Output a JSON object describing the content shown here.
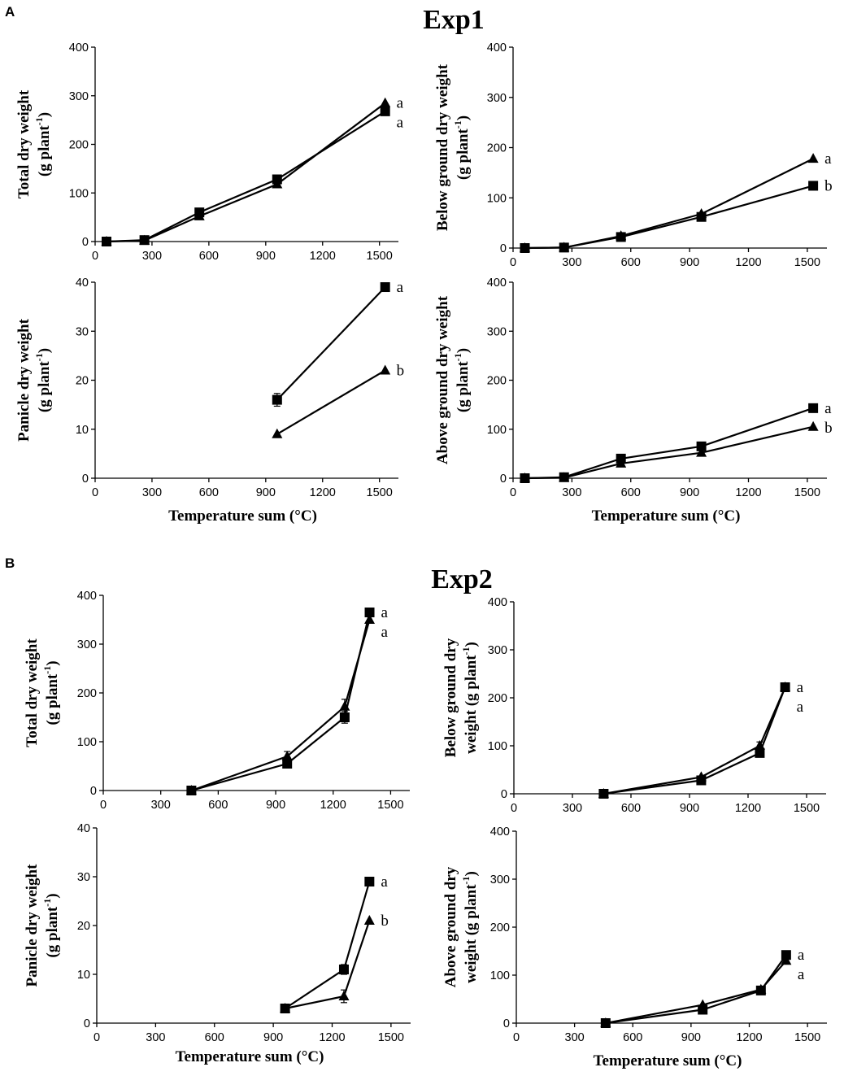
{
  "figure": {
    "panels": [
      {
        "id": "A",
        "label": "A",
        "title": "Exp1"
      },
      {
        "id": "B",
        "label": "B",
        "title": "Exp2"
      }
    ],
    "sup_minus_one": "-1"
  },
  "chart_data": [
    {
      "id": "A-total",
      "panel": "A",
      "type": "line",
      "ylabel_line1": "Total dry weight",
      "ylabel_line2": "(g plant",
      "xlabel": "",
      "xlim": [
        0,
        1600
      ],
      "xticks": [
        0,
        300,
        600,
        900,
        1200,
        1500
      ],
      "ylim": [
        0,
        400
      ],
      "yticks": [
        0,
        100,
        200,
        300,
        400
      ],
      "series": [
        {
          "name": "square",
          "marker": "square",
          "x": [
            60,
            260,
            550,
            960,
            1530
          ],
          "y": [
            0,
            3,
            60,
            128,
            268
          ],
          "err": [
            0,
            0,
            0,
            0,
            0
          ],
          "sig": "a"
        },
        {
          "name": "triangle",
          "marker": "triangle",
          "x": [
            60,
            260,
            550,
            960,
            1530
          ],
          "y": [
            0,
            2,
            52,
            118,
            285
          ],
          "err": [
            0,
            0,
            0,
            0,
            0
          ],
          "sig": "a"
        }
      ]
    },
    {
      "id": "A-below",
      "panel": "A",
      "type": "line",
      "ylabel_line1": "Below ground dry weight",
      "ylabel_line2": "(g plant",
      "xlabel": "",
      "xlim": [
        0,
        1600
      ],
      "xticks": [
        0,
        300,
        600,
        900,
        1200,
        1500
      ],
      "ylim": [
        0,
        400
      ],
      "yticks": [
        0,
        100,
        200,
        300,
        400
      ],
      "series": [
        {
          "name": "square",
          "marker": "square",
          "x": [
            60,
            260,
            550,
            960,
            1530
          ],
          "y": [
            0,
            1,
            22,
            62,
            124
          ],
          "err": [
            0,
            0,
            0,
            0,
            0
          ],
          "sig": "b"
        },
        {
          "name": "triangle",
          "marker": "triangle",
          "x": [
            60,
            260,
            550,
            960,
            1530
          ],
          "y": [
            0,
            1,
            24,
            68,
            178
          ],
          "err": [
            0,
            0,
            0,
            0,
            0
          ],
          "sig": "a"
        }
      ]
    },
    {
      "id": "A-panicle",
      "panel": "A",
      "type": "line",
      "ylabel_line1": "Panicle dry weight",
      "ylabel_line2": "(g plant",
      "xlabel": "Temperature sum (°C)",
      "xlim": [
        0,
        1600
      ],
      "xticks": [
        0,
        300,
        600,
        900,
        1200,
        1500
      ],
      "ylim": [
        0,
        40
      ],
      "yticks": [
        0,
        10,
        20,
        30,
        40
      ],
      "series": [
        {
          "name": "square",
          "marker": "square",
          "x": [
            960,
            1530
          ],
          "y": [
            16,
            39
          ],
          "err": [
            1.3,
            0
          ],
          "sig": "a"
        },
        {
          "name": "triangle",
          "marker": "triangle",
          "x": [
            960,
            1530
          ],
          "y": [
            9,
            22
          ],
          "err": [
            0,
            0
          ],
          "sig": "b"
        }
      ]
    },
    {
      "id": "A-above",
      "panel": "A",
      "type": "line",
      "ylabel_line1": "Above ground dry weight",
      "ylabel_line2": "(g plant",
      "xlabel": "Temperature sum (°C)",
      "xlim": [
        0,
        1600
      ],
      "xticks": [
        0,
        300,
        600,
        900,
        1200,
        1500
      ],
      "ylim": [
        0,
        400
      ],
      "yticks": [
        0,
        100,
        200,
        300,
        400
      ],
      "series": [
        {
          "name": "square",
          "marker": "square",
          "x": [
            60,
            260,
            550,
            960,
            1530
          ],
          "y": [
            0,
            2,
            40,
            65,
            143
          ],
          "err": [
            0,
            0,
            0,
            0,
            0
          ],
          "sig": "a"
        },
        {
          "name": "triangle",
          "marker": "triangle",
          "x": [
            60,
            260,
            550,
            960,
            1530
          ],
          "y": [
            0,
            1,
            30,
            52,
            105
          ],
          "err": [
            0,
            0,
            0,
            0,
            0
          ],
          "sig": "b"
        }
      ]
    },
    {
      "id": "B-total",
      "panel": "B",
      "type": "line",
      "ylabel_line1": "Total dry weight",
      "ylabel_line2": "(g plant",
      "xlabel": "",
      "xlim": [
        0,
        1600
      ],
      "xticks": [
        0,
        300,
        600,
        900,
        1200,
        1500
      ],
      "ylim": [
        0,
        400
      ],
      "yticks": [
        0,
        100,
        200,
        300,
        400
      ],
      "series": [
        {
          "name": "square",
          "marker": "square",
          "x": [
            460,
            960,
            1260,
            1390
          ],
          "y": [
            0,
            55,
            150,
            365
          ],
          "err": [
            0,
            0,
            12,
            0
          ],
          "sig": "a"
        },
        {
          "name": "triangle",
          "marker": "triangle",
          "x": [
            460,
            960,
            1260,
            1390
          ],
          "y": [
            0,
            70,
            172,
            350
          ],
          "err": [
            0,
            10,
            15,
            0
          ],
          "sig": "a"
        }
      ]
    },
    {
      "id": "B-below",
      "panel": "B",
      "type": "line",
      "ylabel_line1": "Below ground dry",
      "ylabel_line2": "weight (g plant",
      "xlabel": "",
      "xlim": [
        0,
        1600
      ],
      "xticks": [
        0,
        300,
        600,
        900,
        1200,
        1500
      ],
      "ylim": [
        0,
        400
      ],
      "yticks": [
        0,
        100,
        200,
        300,
        400
      ],
      "series": [
        {
          "name": "square",
          "marker": "square",
          "x": [
            460,
            960,
            1260,
            1390
          ],
          "y": [
            0,
            28,
            85,
            222
          ],
          "err": [
            0,
            0,
            0,
            0
          ],
          "sig": "a"
        },
        {
          "name": "triangle",
          "marker": "triangle",
          "x": [
            460,
            960,
            1260,
            1390
          ],
          "y": [
            0,
            35,
            100,
            222
          ],
          "err": [
            0,
            0,
            8,
            0
          ],
          "sig": "a"
        }
      ]
    },
    {
      "id": "B-panicle",
      "panel": "B",
      "type": "line",
      "ylabel_line1": "Panicle dry weight",
      "ylabel_line2": "(g plant",
      "xlabel": "Temperature sum (°C)",
      "xlim": [
        0,
        1600
      ],
      "xticks": [
        0,
        300,
        600,
        900,
        1200,
        1500
      ],
      "ylim": [
        0,
        40
      ],
      "yticks": [
        0,
        10,
        20,
        30,
        40
      ],
      "series": [
        {
          "name": "square",
          "marker": "square",
          "x": [
            960,
            1260,
            1390
          ],
          "y": [
            3,
            11,
            29
          ],
          "err": [
            0,
            1,
            0
          ],
          "sig": "a"
        },
        {
          "name": "triangle",
          "marker": "triangle",
          "x": [
            960,
            1260,
            1390
          ],
          "y": [
            3,
            5.5,
            21
          ],
          "err": [
            0,
            1.3,
            0
          ],
          "sig": "b"
        }
      ]
    },
    {
      "id": "B-above",
      "panel": "B",
      "type": "line",
      "ylabel_line1": "Above ground dry",
      "ylabel_line2": "weight (g plant",
      "xlabel": "Temperature sum (°C)",
      "xlim": [
        0,
        1600
      ],
      "xticks": [
        0,
        300,
        600,
        900,
        1200,
        1500
      ],
      "ylim": [
        0,
        400
      ],
      "yticks": [
        0,
        100,
        200,
        300,
        400
      ],
      "series": [
        {
          "name": "square",
          "marker": "square",
          "x": [
            460,
            960,
            1260,
            1390
          ],
          "y": [
            0,
            28,
            68,
            142
          ],
          "err": [
            0,
            0,
            0,
            0
          ],
          "sig": "a"
        },
        {
          "name": "triangle",
          "marker": "triangle",
          "x": [
            460,
            960,
            1260,
            1390
          ],
          "y": [
            0,
            38,
            70,
            130
          ],
          "err": [
            0,
            0,
            0,
            0
          ],
          "sig": "a"
        }
      ]
    }
  ]
}
